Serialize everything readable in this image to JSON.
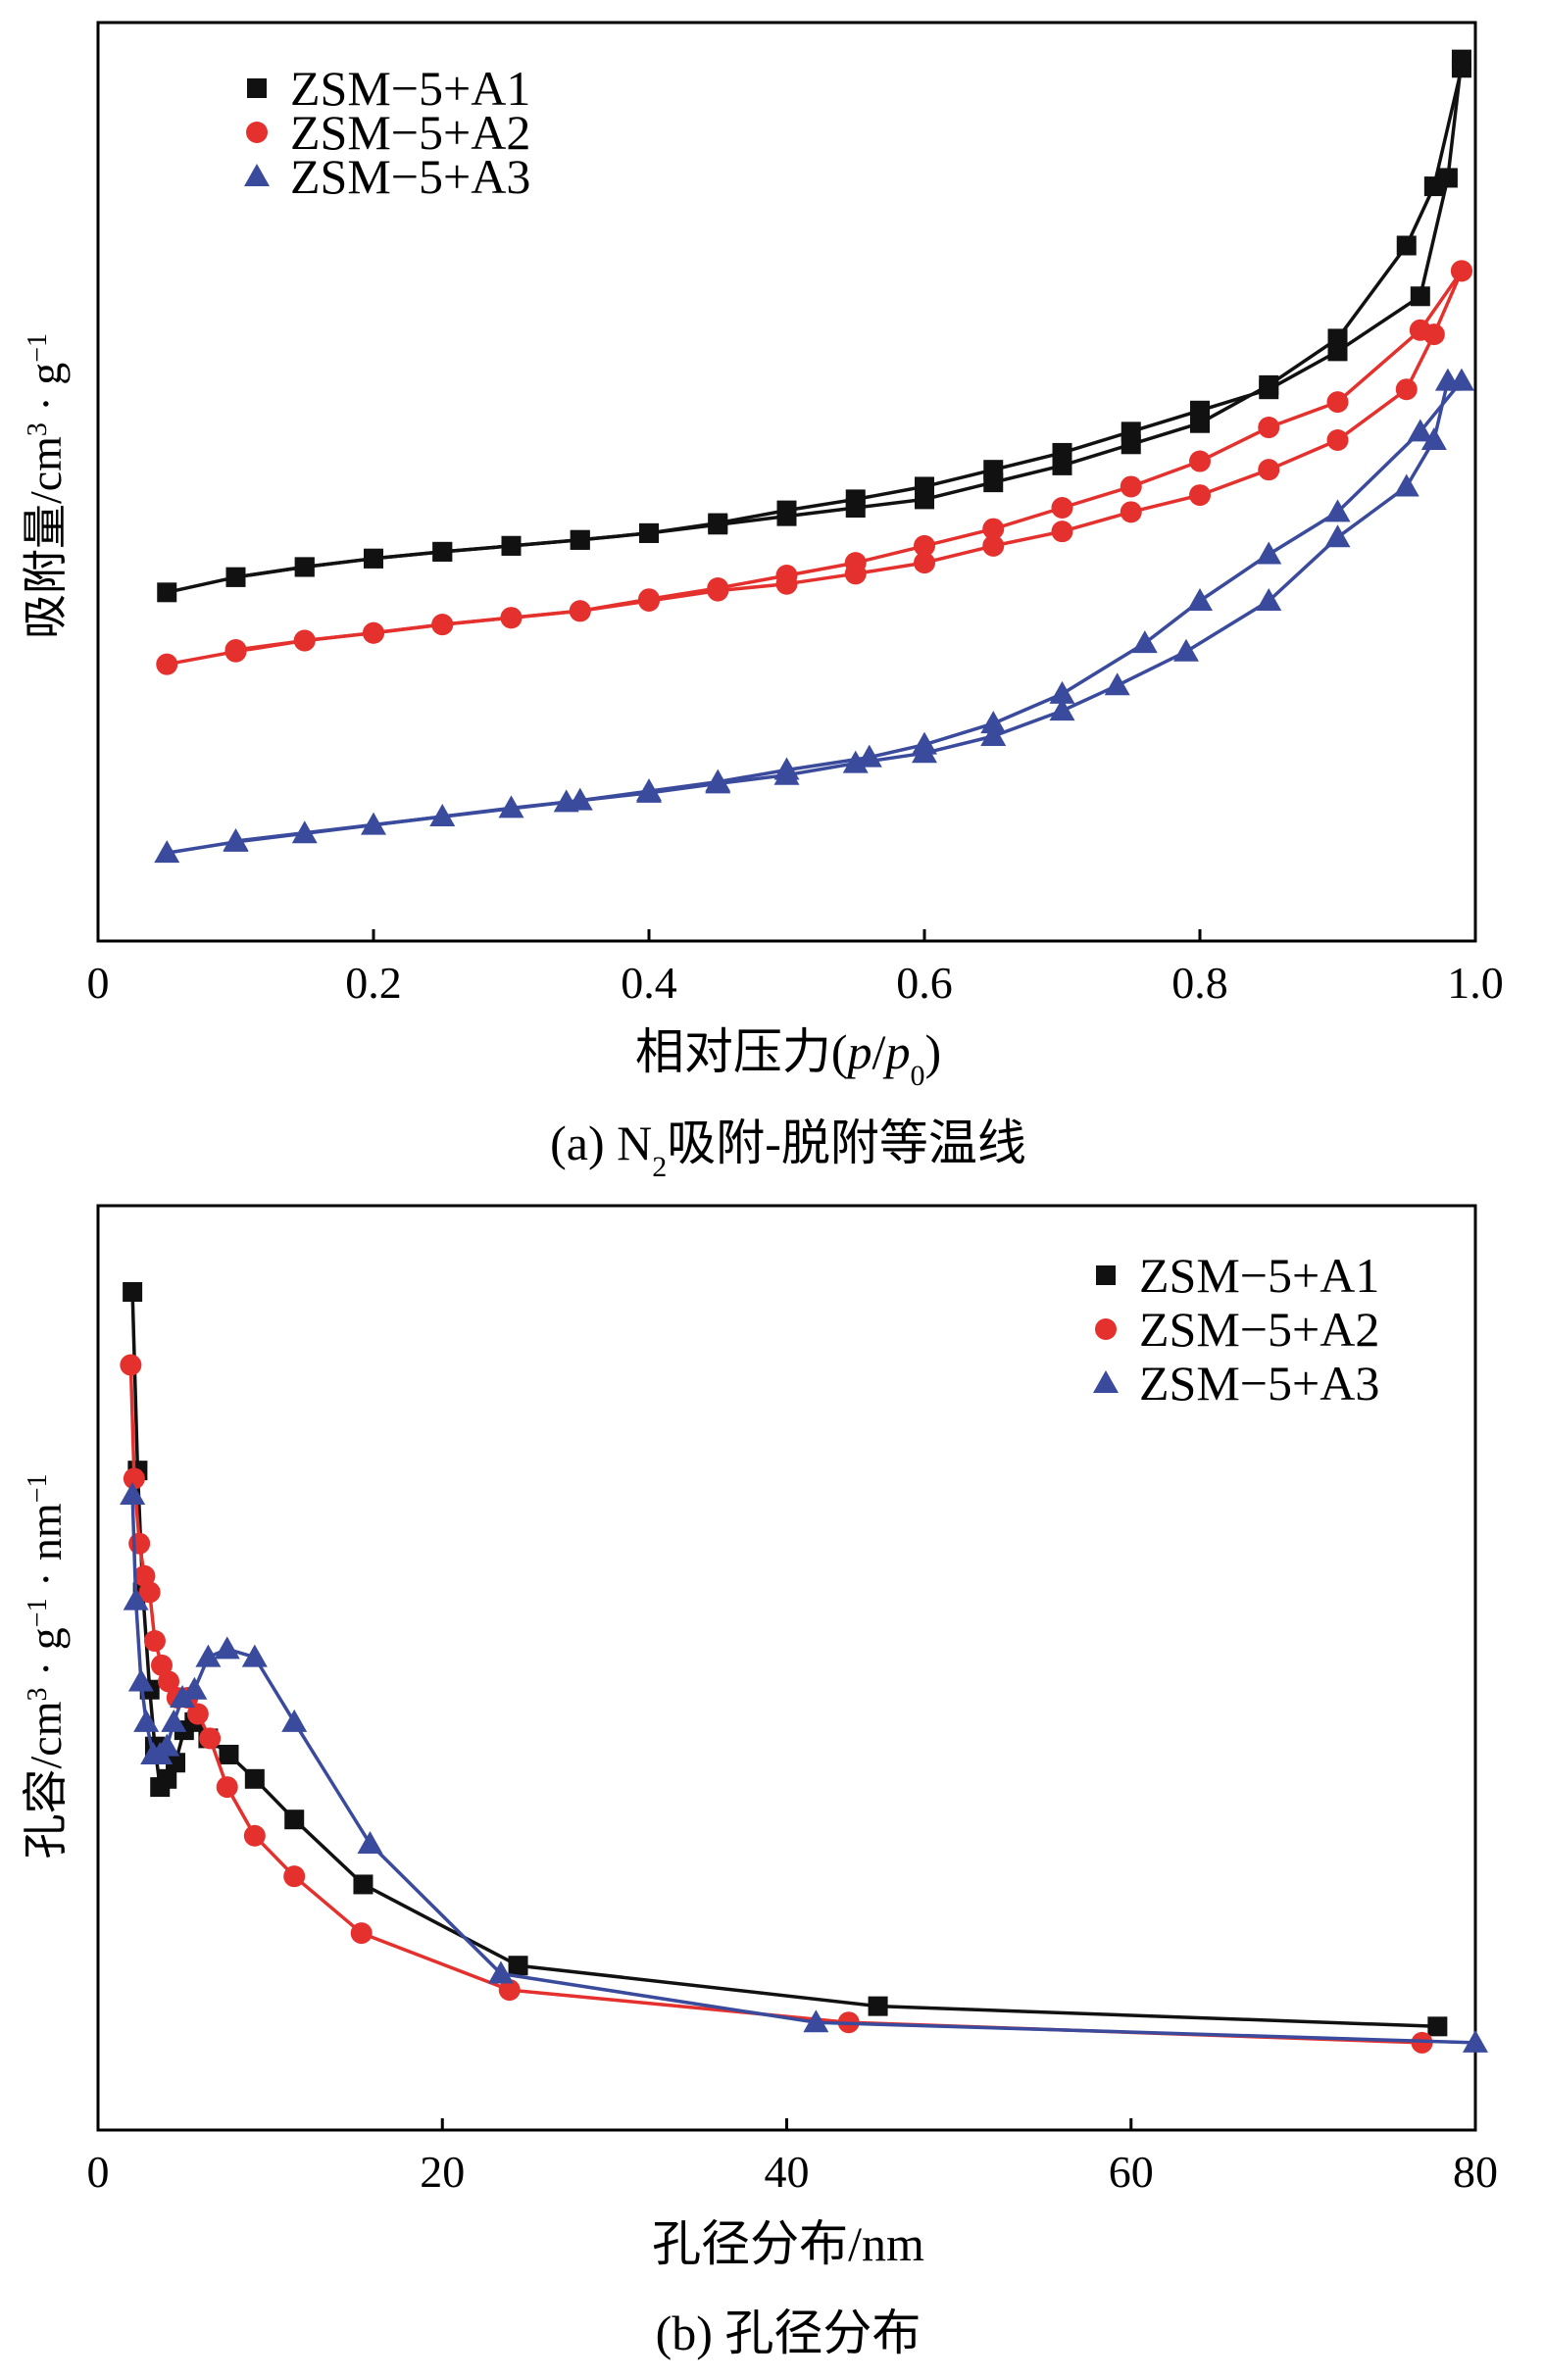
{
  "chart_data": [
    {
      "type": "line",
      "panel": "a",
      "caption": "(a) N2吸附-脱附等温线",
      "caption_parts": {
        "prefix": "(a) N",
        "sub": "2",
        "suffix": "吸附-脱附等温线"
      },
      "xlabel": "相对压力(p/p0)",
      "xlabel_parts": {
        "prefix": "相对压力(",
        "p1": "p",
        "slash": "/",
        "p2": "p",
        "sub": "0",
        "suffix": ")"
      },
      "ylabel": "吸附量/cm3 · g-1",
      "ylabel_parts": {
        "base": "吸附量/cm",
        "sup1": "3",
        "mid": " · g",
        "sup2": "−1"
      },
      "xlim": [
        0,
        1.0
      ],
      "ylim": [
        0,
        100
      ],
      "xticks": [
        0,
        0.2,
        0.4,
        0.6,
        0.8,
        1.0
      ],
      "xtick_labels": [
        "0",
        "0.2",
        "0.4",
        "0.6",
        "0.8",
        "1.0"
      ],
      "yticks_shown": false,
      "legend_position": "top-left",
      "series": [
        {
          "name": "ZSM−5+A1",
          "color": "#111111",
          "marker": "square",
          "adsorption": {
            "x": [
              0.05,
              0.1,
              0.15,
              0.2,
              0.25,
              0.3,
              0.35,
              0.4,
              0.45,
              0.5,
              0.55,
              0.6,
              0.65,
              0.7,
              0.75,
              0.8,
              0.85,
              0.9,
              0.95,
              0.97,
              0.99
            ],
            "y": [
              36,
              37.8,
              39,
              40,
              40.8,
              41.5,
              42.2,
              43,
              44,
              45,
              46,
              47,
              49,
              51,
              53.5,
              56,
              60.5,
              66,
              77,
              84,
              98
            ]
          },
          "desorption": {
            "x": [
              0.99,
              0.98,
              0.96,
              0.9,
              0.85,
              0.8,
              0.75,
              0.7,
              0.65,
              0.6,
              0.55,
              0.5,
              0.45,
              0.4,
              0.35,
              0.3,
              0.25,
              0.2,
              0.15,
              0.1
            ],
            "y": [
              99,
              85,
              71,
              64.5,
              60,
              57.5,
              55,
              52.5,
              50.5,
              48.5,
              47,
              45.7,
              44.2,
              43,
              42.2,
              41.5,
              40.8,
              40,
              39,
              37.8
            ]
          }
        },
        {
          "name": "ZSM−5+A2",
          "color": "#e5312d",
          "marker": "circle",
          "adsorption": {
            "x": [
              0.05,
              0.1,
              0.15,
              0.2,
              0.25,
              0.3,
              0.35,
              0.4,
              0.45,
              0.5,
              0.55,
              0.6,
              0.65,
              0.7,
              0.75,
              0.8,
              0.85,
              0.9,
              0.95,
              0.97,
              0.99
            ],
            "y": [
              27.5,
              29,
              30.3,
              31.2,
              32.2,
              33,
              33.8,
              35,
              36.2,
              37,
              38.2,
              39.5,
              41.5,
              43.2,
              45.5,
              47.5,
              50.5,
              54,
              60,
              66.5,
              74
            ]
          },
          "desorption": {
            "x": [
              0.99,
              0.96,
              0.9,
              0.85,
              0.8,
              0.75,
              0.7,
              0.65,
              0.6,
              0.55,
              0.5,
              0.45,
              0.4,
              0.35,
              0.3,
              0.25,
              0.2,
              0.15,
              0.1
            ],
            "y": [
              74,
              67,
              58.5,
              55.5,
              51.5,
              48.5,
              46,
              43.5,
              41.5,
              39.5,
              38,
              36.5,
              35.2,
              33.8,
              33,
              32.2,
              31.2,
              30.3,
              29.2
            ]
          }
        },
        {
          "name": "ZSM−5+A3",
          "color": "#3a4a9c",
          "marker": "triangle",
          "adsorption": {
            "x": [
              0.05,
              0.1,
              0.15,
              0.2,
              0.25,
              0.3,
              0.34,
              0.4,
              0.45,
              0.5,
              0.55,
              0.6,
              0.65,
              0.7,
              0.74,
              0.79,
              0.85,
              0.9,
              0.95,
              0.97,
              0.98
            ],
            "y": [
              5.2,
              6.5,
              7.5,
              8.5,
              9.5,
              10.5,
              11.2,
              12.3,
              13.4,
              14.4,
              15.8,
              17,
              19,
              22,
              25,
              29,
              35,
              42.5,
              48.5,
              54,
              61
            ]
          },
          "desorption": {
            "x": [
              0.99,
              0.96,
              0.9,
              0.85,
              0.8,
              0.76,
              0.7,
              0.65,
              0.6,
              0.56,
              0.5,
              0.45,
              0.4,
              0.35,
              0.1
            ],
            "y": [
              61,
              55,
              45.5,
              40.5,
              35,
              30,
              24,
              20.5,
              18,
              16.5,
              15,
              13.6,
              12.5,
              11.4,
              6.6
            ]
          }
        }
      ]
    },
    {
      "type": "line",
      "panel": "b",
      "caption": "(b) 孔径分布",
      "xlabel": "孔径分布/nm",
      "ylabel": "孔容/cm3 · g-1 · nm-1",
      "ylabel_parts": {
        "base": "孔容/cm",
        "sup1": "3",
        "mid": " · g",
        "sup2": "−1",
        "mid2": " · nm",
        "sup3": "−1"
      },
      "xlim": [
        0,
        80
      ],
      "ylim": [
        0,
        100
      ],
      "xticks": [
        0,
        20,
        40,
        60,
        80
      ],
      "xtick_labels": [
        "0",
        "20",
        "40",
        "60",
        "80"
      ],
      "yticks_shown": false,
      "legend_position": "top-right",
      "series": [
        {
          "name": "ZSM−5+A1",
          "color": "#111111",
          "marker": "square",
          "x": [
            2.0,
            2.3,
            2.6,
            3.0,
            3.3,
            3.6,
            4.0,
            4.5,
            5.0,
            5.6,
            6.4,
            7.6,
            9.1,
            11.4,
            15.4,
            24.4,
            45.3,
            77.8
          ],
          "y": [
            100,
            78,
            63,
            51,
            44,
            39,
            40,
            42,
            46,
            47,
            45,
            43,
            40,
            35,
            27,
            17,
            12,
            9.5
          ]
        },
        {
          "name": "ZSM−5+A2",
          "color": "#e5312d",
          "marker": "circle",
          "x": [
            1.9,
            2.1,
            2.4,
            2.7,
            3.0,
            3.3,
            3.7,
            4.1,
            4.6,
            5.2,
            5.8,
            6.5,
            7.5,
            9.1,
            11.4,
            15.3,
            23.9,
            43.6,
            76.9
          ],
          "y": [
            91,
            77,
            69,
            65,
            63,
            57,
            54,
            52,
            50,
            50,
            48,
            45,
            39,
            33,
            28,
            21,
            14,
            10,
            7.5
          ]
        },
        {
          "name": "ZSM−5+A3",
          "color": "#3a4a9c",
          "marker": "triangle",
          "x": [
            2.0,
            2.2,
            2.5,
            2.8,
            3.2,
            3.6,
            4.0,
            4.4,
            4.9,
            5.6,
            6.4,
            7.5,
            9.1,
            11.4,
            15.8,
            23.4,
            41.7,
            80
          ],
          "y": [
            75,
            62,
            52,
            47,
            43,
            43,
            44,
            47,
            50,
            51,
            55,
            56,
            55,
            47,
            32,
            16,
            10,
            7.5
          ]
        }
      ]
    }
  ]
}
